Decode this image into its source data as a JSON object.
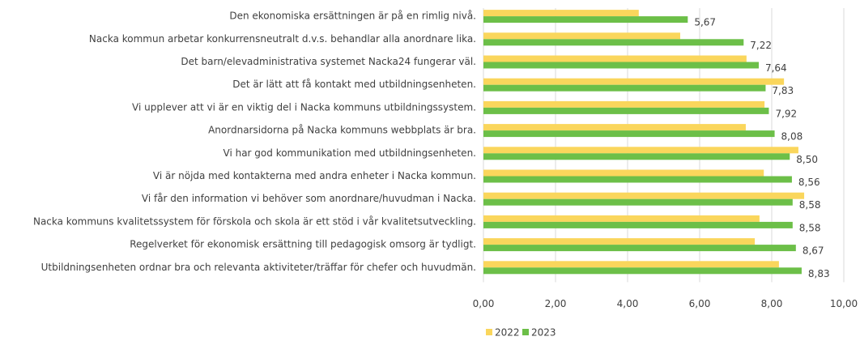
{
  "chart_data": {
    "type": "bar",
    "orientation": "horizontal",
    "categories": [
      "Den ekonomiska ersättningen är på en rimlig nivå.",
      "Nacka kommun arbetar konkurrensneutralt d.v.s. behandlar alla anordnare lika.",
      "Det barn/elevadministrativa systemet Nacka24 fungerar väl.",
      "Det är lätt att få kontakt med utbildningsenheten.",
      "Vi upplever att vi är en viktig del i Nacka kommuns utbildningssystem.",
      "Anordnarsidorna på Nacka kommuns webbplats är bra.",
      "Vi har god kommunikation med utbildningsenheten.",
      "Vi är nöjda med kontakterna med andra enheter i Nacka kommun.",
      "Vi får den information vi behöver som anordnare/huvudman i Nacka.",
      "Nacka kommuns kvalitetssystem för förskola och skola är ett stöd i vår kvalitetsutveckling.",
      "Regelverket för ekonomisk ersättning till pedagogisk omsorg är tydligt.",
      "Utbildningsenheten ordnar bra och relevanta aktiviteter/träffar för chefer och huvudmän."
    ],
    "series": [
      {
        "name": "2022",
        "color": "#fad65c",
        "values": [
          4.31,
          5.46,
          7.3,
          8.34,
          7.8,
          7.28,
          8.74,
          7.78,
          8.9,
          7.66,
          7.53,
          8.2
        ]
      },
      {
        "name": "2023",
        "color": "#6cbf48",
        "values": [
          5.67,
          7.22,
          7.64,
          7.83,
          7.92,
          8.08,
          8.5,
          8.56,
          8.58,
          8.58,
          8.67,
          8.83
        ],
        "value_labels": [
          "5,67",
          "7,22",
          "7,64",
          "7,83",
          "7,92",
          "8,08",
          "8,50",
          "8,56",
          "8,58",
          "8,58",
          "8,67",
          "8,83"
        ]
      }
    ],
    "xlim": [
      0,
      10
    ],
    "xticks": [
      {
        "value": 0,
        "label": "0,00"
      },
      {
        "value": 2,
        "label": "2,00"
      },
      {
        "value": 4,
        "label": "4,00"
      },
      {
        "value": 6,
        "label": "6,00"
      },
      {
        "value": 8,
        "label": "8,00"
      },
      {
        "value": 10,
        "label": "10,00"
      }
    ],
    "grid": true,
    "legend": "bottom"
  }
}
